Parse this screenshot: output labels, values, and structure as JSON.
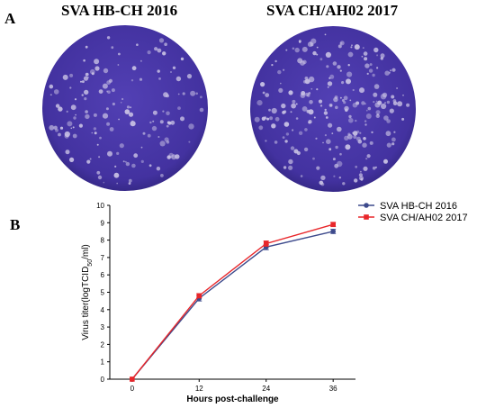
{
  "panel_a": {
    "letter": "A",
    "plates": [
      {
        "title": "SVA HB-CH 2016"
      },
      {
        "title": "SVA CH/AH02 2017"
      }
    ],
    "plate_color": "#4b37a8",
    "plaque_color": "#c9c2e4"
  },
  "panel_b": {
    "letter": "B"
  },
  "chart_data": {
    "type": "line",
    "xlabel": "Hours post-challenge",
    "ylabel": "Virus titer(logTCID50/ml)",
    "x": [
      0,
      12,
      24,
      36
    ],
    "xticks": [
      "0",
      "12",
      "24",
      "36"
    ],
    "xlim": [
      -4,
      40
    ],
    "ylim": [
      0,
      10
    ],
    "yticks": [
      "0",
      "1",
      "2",
      "3",
      "4",
      "5",
      "6",
      "7",
      "8",
      "9",
      "10"
    ],
    "series": [
      {
        "name": "SVA HB-CH 2016",
        "color": "#3d4a8c",
        "marker": "circle",
        "values": [
          0,
          4.65,
          7.6,
          8.5
        ],
        "errors": [
          0,
          0.15,
          0.15,
          0.12
        ]
      },
      {
        "name": "SVA CH/AH02 2017",
        "color": "#e8262a",
        "marker": "square",
        "values": [
          0,
          4.8,
          7.8,
          8.9
        ],
        "errors": [
          0,
          0.12,
          0.15,
          0.12
        ]
      }
    ],
    "legend_position": "top-right",
    "grid": false
  }
}
